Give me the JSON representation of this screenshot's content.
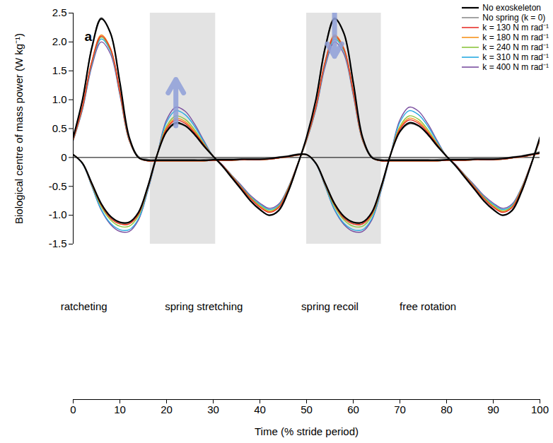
{
  "chart_data": {
    "type": "line",
    "panel_label": "a",
    "x_label": "Time (% stride period)",
    "y_label": "Biological centre of mass power (W kg⁻¹)",
    "xlim": [
      0,
      100
    ],
    "xticks": [
      0,
      10,
      20,
      30,
      40,
      50,
      60,
      70,
      80,
      90,
      100
    ],
    "ylim": [
      -1.5,
      2.5
    ],
    "yticks": [
      -1.5,
      {
        "value": -1,
        "label": "-1.0"
      },
      -0.5,
      0,
      0.5,
      {
        "value": 1,
        "label": "1.0"
      },
      1.5,
      {
        "value": 2,
        "label": "2.0"
      },
      2.5
    ],
    "grid": false,
    "legend": "top-right",
    "shaded_regions": [
      [
        16.5,
        30.5
      ],
      [
        50,
        66
      ]
    ],
    "arrows": [
      {
        "x": 22,
        "y1": 0.55,
        "y2": 1.35
      },
      {
        "x": 56,
        "y1": 2.5,
        "y2": 1.75
      }
    ],
    "annotations": [
      {
        "text": "ratcheting",
        "x": 2.3
      },
      {
        "text": "spring stretching",
        "x": 28
      },
      {
        "text": "spring recoil",
        "x": 55
      },
      {
        "text": "free rotation",
        "x": 76
      }
    ],
    "x": [
      0,
      2,
      4,
      6,
      8,
      10,
      12,
      14,
      16,
      18,
      20,
      22,
      24,
      26,
      28,
      30,
      32,
      34,
      36,
      38,
      40,
      42,
      44,
      46,
      48,
      50,
      52,
      54,
      56,
      58,
      60,
      62,
      64,
      66,
      68,
      70,
      72,
      74,
      76,
      78,
      80,
      82,
      84,
      86,
      88,
      90,
      92,
      94,
      96,
      98,
      100
    ],
    "series": [
      {
        "name": "No exoskeleton",
        "color": "#000000",
        "values": [
          [
            0.35,
            1.0,
            1.9,
            2.4,
            2.15,
            1.3,
            0.35,
            0.0,
            -0.05,
            -0.05,
            -0.05,
            -0.05,
            -0.05,
            -0.05,
            -0.05,
            -0.04,
            -0.04,
            -0.04,
            -0.03,
            -0.03,
            -0.03,
            -0.02,
            0.0,
            0.02,
            0.05,
            0.05,
            -0.1,
            -0.45,
            -0.8,
            -1.02,
            -1.12,
            -1.12,
            -0.95,
            -0.5,
            0.05,
            0.45,
            0.6,
            0.55,
            0.4,
            0.2,
            0.02,
            -0.15,
            -0.35,
            -0.55,
            -0.75,
            -0.9,
            -1.0,
            -0.92,
            -0.6,
            -0.15,
            0.35
          ],
          [
            0.05,
            -0.1,
            -0.45,
            -0.8,
            -1.02,
            -1.12,
            -1.12,
            -0.95,
            -0.5,
            0.05,
            0.45,
            0.6,
            0.55,
            0.4,
            0.2,
            0.02,
            -0.15,
            -0.35,
            -0.55,
            -0.75,
            -0.9,
            -1.0,
            -0.92,
            -0.6,
            -0.15,
            0.35,
            1.0,
            1.9,
            2.4,
            2.15,
            1.3,
            0.35,
            0.0,
            -0.05,
            -0.05,
            -0.05,
            -0.05,
            -0.05,
            -0.05,
            -0.05,
            -0.04,
            -0.04,
            -0.04,
            -0.03,
            -0.03,
            -0.03,
            -0.02,
            0.0,
            0.02,
            0.05,
            0.08
          ]
        ]
      },
      {
        "name": "No spring (k = 0)",
        "color": "#8c8c8c",
        "values": [
          [
            0.33,
            1.0,
            1.92,
            2.42,
            2.15,
            1.28,
            0.33,
            0.02,
            -0.03,
            -0.03,
            -0.03,
            -0.03,
            -0.03,
            -0.03,
            -0.03,
            -0.02,
            -0.02,
            -0.02,
            -0.02,
            -0.02,
            -0.02,
            -0.01,
            0.01,
            0.03,
            0.06,
            0.05,
            -0.1,
            -0.45,
            -0.8,
            -1.03,
            -1.13,
            -1.12,
            -0.95,
            -0.5,
            0.05,
            0.44,
            0.58,
            0.54,
            0.39,
            0.19,
            0.02,
            -0.16,
            -0.36,
            -0.56,
            -0.76,
            -0.91,
            -1.0,
            -0.93,
            -0.62,
            -0.16,
            0.33
          ],
          [
            0.05,
            -0.1,
            -0.45,
            -0.8,
            -1.03,
            -1.13,
            -1.12,
            -0.95,
            -0.5,
            0.05,
            0.44,
            0.58,
            0.54,
            0.39,
            0.19,
            0.02,
            -0.16,
            -0.36,
            -0.56,
            -0.76,
            -0.91,
            -1.0,
            -0.93,
            -0.62,
            -0.16,
            0.33,
            1.0,
            1.92,
            2.42,
            2.15,
            1.28,
            0.33,
            0.02,
            -0.03,
            -0.03,
            -0.03,
            -0.03,
            -0.03,
            -0.03,
            -0.03,
            -0.02,
            -0.02,
            -0.02,
            -0.02,
            -0.02,
            -0.02,
            -0.01,
            0.01,
            0.03,
            0.06,
            0.1
          ]
        ]
      },
      {
        "name": "k = 130 N m rad⁻¹",
        "color": "#e8322b",
        "values": [
          [
            0.31,
            0.88,
            1.66,
            2.1,
            1.88,
            1.14,
            0.31,
            0.0,
            -0.06,
            -0.06,
            -0.06,
            -0.06,
            -0.06,
            -0.06,
            -0.06,
            -0.05,
            -0.05,
            -0.05,
            -0.04,
            -0.04,
            -0.04,
            -0.03,
            -0.01,
            0.01,
            0.04,
            0.05,
            -0.1,
            -0.47,
            -0.82,
            -1.05,
            -1.15,
            -1.15,
            -0.98,
            -0.52,
            0.05,
            0.49,
            0.65,
            0.59,
            0.43,
            0.22,
            0.02,
            -0.14,
            -0.33,
            -0.52,
            -0.71,
            -0.86,
            -0.95,
            -0.87,
            -0.57,
            -0.14,
            0.31
          ],
          [
            0.05,
            -0.1,
            -0.47,
            -0.82,
            -1.05,
            -1.15,
            -1.15,
            -0.98,
            -0.52,
            0.05,
            0.49,
            0.65,
            0.59,
            0.43,
            0.22,
            0.02,
            -0.14,
            -0.33,
            -0.52,
            -0.71,
            -0.86,
            -0.95,
            -0.87,
            -0.57,
            -0.14,
            0.31,
            0.88,
            1.66,
            2.1,
            1.88,
            1.14,
            0.31,
            0.0,
            -0.06,
            -0.06,
            -0.06,
            -0.06,
            -0.06,
            -0.06,
            -0.06,
            -0.05,
            -0.05,
            -0.05,
            -0.04,
            -0.04,
            -0.04,
            -0.03,
            -0.01,
            0.01,
            0.04,
            0.07
          ]
        ]
      },
      {
        "name": "k = 180 N m rad⁻¹",
        "color": "#f7941d",
        "values": [
          [
            0.31,
            0.88,
            1.67,
            2.12,
            1.89,
            1.14,
            0.31,
            0.0,
            -0.06,
            -0.06,
            -0.06,
            -0.06,
            -0.06,
            -0.06,
            -0.06,
            -0.05,
            -0.05,
            -0.05,
            -0.04,
            -0.04,
            -0.04,
            -0.03,
            -0.01,
            0.01,
            0.04,
            0.05,
            -0.1,
            -0.47,
            -0.82,
            -1.05,
            -1.15,
            -1.15,
            -0.98,
            -0.52,
            0.05,
            0.51,
            0.68,
            0.62,
            0.45,
            0.23,
            0.02,
            -0.14,
            -0.33,
            -0.52,
            -0.71,
            -0.85,
            -0.94,
            -0.86,
            -0.56,
            -0.14,
            0.31
          ],
          [
            0.05,
            -0.1,
            -0.47,
            -0.82,
            -1.05,
            -1.15,
            -1.15,
            -0.98,
            -0.52,
            0.05,
            0.51,
            0.68,
            0.62,
            0.45,
            0.23,
            0.02,
            -0.14,
            -0.33,
            -0.52,
            -0.71,
            -0.85,
            -0.94,
            -0.86,
            -0.56,
            -0.14,
            0.31,
            0.88,
            1.67,
            2.12,
            1.89,
            1.14,
            0.31,
            0.0,
            -0.06,
            -0.06,
            -0.06,
            -0.06,
            -0.06,
            -0.06,
            -0.06,
            -0.05,
            -0.05,
            -0.05,
            -0.04,
            -0.04,
            -0.04,
            -0.03,
            -0.01,
            0.01,
            0.04,
            0.07
          ]
        ]
      },
      {
        "name": "k = 240 N m rad⁻¹",
        "color": "#8dc63f",
        "values": [
          [
            0.3,
            0.87,
            1.65,
            2.08,
            1.86,
            1.13,
            0.3,
            0.0,
            -0.06,
            -0.06,
            -0.06,
            -0.06,
            -0.06,
            -0.06,
            -0.06,
            -0.05,
            -0.05,
            -0.05,
            -0.04,
            -0.04,
            -0.04,
            -0.03,
            -0.01,
            0.01,
            0.04,
            0.05,
            -0.1,
            -0.48,
            -0.85,
            -1.08,
            -1.19,
            -1.19,
            -1.01,
            -0.53,
            0.05,
            0.54,
            0.72,
            0.66,
            0.48,
            0.24,
            0.02,
            -0.14,
            -0.32,
            -0.51,
            -0.69,
            -0.83,
            -0.92,
            -0.85,
            -0.55,
            -0.14,
            0.3
          ],
          [
            0.05,
            -0.1,
            -0.48,
            -0.85,
            -1.08,
            -1.19,
            -1.19,
            -1.01,
            -0.53,
            0.05,
            0.54,
            0.72,
            0.66,
            0.48,
            0.24,
            0.02,
            -0.14,
            -0.32,
            -0.51,
            -0.69,
            -0.83,
            -0.92,
            -0.85,
            -0.55,
            -0.14,
            0.3,
            0.87,
            1.65,
            2.08,
            1.86,
            1.13,
            0.3,
            0.0,
            -0.06,
            -0.06,
            -0.06,
            -0.06,
            -0.06,
            -0.06,
            -0.06,
            -0.05,
            -0.05,
            -0.05,
            -0.04,
            -0.04,
            -0.04,
            -0.03,
            -0.01,
            0.01,
            0.04,
            0.07
          ]
        ]
      },
      {
        "name": "k = 310 N m rad⁻¹",
        "color": "#29abe2",
        "values": [
          [
            0.3,
            0.85,
            1.62,
            2.05,
            1.84,
            1.11,
            0.3,
            0.0,
            -0.06,
            -0.06,
            -0.06,
            -0.06,
            -0.06,
            -0.06,
            -0.06,
            -0.05,
            -0.05,
            -0.05,
            -0.04,
            -0.04,
            -0.04,
            -0.03,
            -0.01,
            0.01,
            0.04,
            0.05,
            -0.11,
            -0.5,
            -0.9,
            -1.14,
            -1.25,
            -1.25,
            -1.06,
            -0.56,
            0.05,
            0.61,
            0.81,
            0.74,
            0.54,
            0.27,
            0.02,
            -0.14,
            -0.32,
            -0.5,
            -0.68,
            -0.81,
            -0.9,
            -0.83,
            -0.54,
            -0.14,
            0.3
          ],
          [
            0.05,
            -0.11,
            -0.5,
            -0.9,
            -1.14,
            -1.25,
            -1.25,
            -1.06,
            -0.56,
            0.05,
            0.61,
            0.81,
            0.74,
            0.54,
            0.27,
            0.02,
            -0.14,
            -0.32,
            -0.5,
            -0.68,
            -0.81,
            -0.9,
            -0.83,
            -0.54,
            -0.14,
            0.3,
            0.85,
            1.62,
            2.05,
            1.84,
            1.11,
            0.3,
            0.0,
            -0.06,
            -0.06,
            -0.06,
            -0.06,
            -0.06,
            -0.06,
            -0.06,
            -0.05,
            -0.05,
            -0.05,
            -0.04,
            -0.04,
            -0.04,
            -0.03,
            -0.01,
            0.01,
            0.04,
            0.07
          ]
        ]
      },
      {
        "name": "k = 400 N m rad⁻¹",
        "color": "#7b4fa0",
        "values": [
          [
            0.29,
            0.83,
            1.58,
            2.0,
            1.79,
            1.08,
            0.29,
            0.0,
            -0.06,
            -0.06,
            -0.06,
            -0.06,
            -0.06,
            -0.06,
            -0.06,
            -0.05,
            -0.05,
            -0.05,
            -0.04,
            -0.04,
            -0.04,
            -0.03,
            -0.01,
            0.01,
            0.04,
            0.05,
            -0.11,
            -0.5,
            -0.91,
            -1.16,
            -1.28,
            -1.28,
            -1.08,
            -0.57,
            0.05,
            0.65,
            0.87,
            0.8,
            0.58,
            0.29,
            0.02,
            -0.13,
            -0.31,
            -0.48,
            -0.66,
            -0.79,
            -0.88,
            -0.81,
            -0.53,
            -0.13,
            0.29
          ],
          [
            0.05,
            -0.11,
            -0.5,
            -0.91,
            -1.16,
            -1.28,
            -1.28,
            -1.08,
            -0.57,
            0.05,
            0.65,
            0.87,
            0.8,
            0.58,
            0.29,
            0.02,
            -0.13,
            -0.31,
            -0.48,
            -0.66,
            -0.79,
            -0.88,
            -0.81,
            -0.53,
            -0.13,
            0.29,
            0.83,
            1.58,
            2.0,
            1.79,
            1.08,
            0.29,
            0.0,
            -0.06,
            -0.06,
            -0.06,
            -0.06,
            -0.06,
            -0.06,
            -0.06,
            -0.05,
            -0.05,
            -0.05,
            -0.04,
            -0.04,
            -0.04,
            -0.03,
            -0.01,
            0.01,
            0.04,
            0.07
          ]
        ]
      }
    ]
  }
}
